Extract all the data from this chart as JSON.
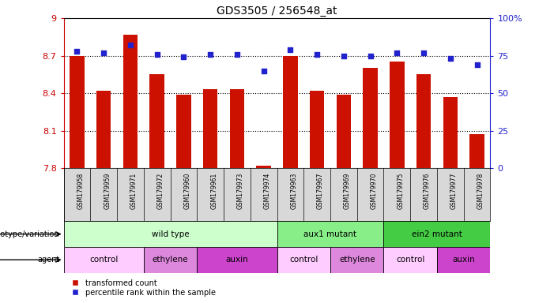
{
  "title": "GDS3505 / 256548_at",
  "samples": [
    "GSM179958",
    "GSM179959",
    "GSM179971",
    "GSM179972",
    "GSM179960",
    "GSM179961",
    "GSM179973",
    "GSM179974",
    "GSM179963",
    "GSM179967",
    "GSM179969",
    "GSM179970",
    "GSM179975",
    "GSM179976",
    "GSM179977",
    "GSM179978"
  ],
  "bar_values": [
    8.7,
    8.42,
    8.87,
    8.55,
    8.39,
    8.43,
    8.43,
    7.82,
    8.7,
    8.42,
    8.39,
    8.6,
    8.65,
    8.55,
    8.37,
    8.07
  ],
  "dot_values": [
    78,
    77,
    82,
    76,
    74,
    76,
    76,
    65,
    79,
    76,
    75,
    75,
    77,
    77,
    73,
    69
  ],
  "bar_color": "#cc1100",
  "dot_color": "#2222cc",
  "ylim_left": [
    7.8,
    9.0
  ],
  "ylim_right": [
    0,
    100
  ],
  "yticks_left": [
    7.8,
    8.1,
    8.4,
    8.7,
    9.0
  ],
  "yticks_right": [
    0,
    25,
    50,
    75,
    100
  ],
  "ytick_labels_left": [
    "7.8",
    "8.1",
    "8.4",
    "8.7",
    "9"
  ],
  "ytick_labels_right": [
    "0",
    "25",
    "50",
    "75",
    "100%"
  ],
  "hlines": [
    8.1,
    8.4,
    8.7
  ],
  "genotype_groups": [
    {
      "label": "wild type",
      "start": 0,
      "end": 8,
      "color": "#ccffcc"
    },
    {
      "label": "aux1 mutant",
      "start": 8,
      "end": 12,
      "color": "#88ee88"
    },
    {
      "label": "ein2 mutant",
      "start": 12,
      "end": 16,
      "color": "#44cc44"
    }
  ],
  "agent_groups": [
    {
      "label": "control",
      "start": 0,
      "end": 3,
      "color": "#ffccff"
    },
    {
      "label": "ethylene",
      "start": 3,
      "end": 5,
      "color": "#dd88dd"
    },
    {
      "label": "auxin",
      "start": 5,
      "end": 8,
      "color": "#cc44cc"
    },
    {
      "label": "control",
      "start": 8,
      "end": 10,
      "color": "#ffccff"
    },
    {
      "label": "ethylene",
      "start": 10,
      "end": 12,
      "color": "#dd88dd"
    },
    {
      "label": "control",
      "start": 12,
      "end": 14,
      "color": "#ffccff"
    },
    {
      "label": "auxin",
      "start": 14,
      "end": 16,
      "color": "#cc44cc"
    }
  ],
  "legend_bar_label": "transformed count",
  "legend_dot_label": "percentile rank within the sample",
  "genotype_label": "genotype/variation",
  "agent_label": "agent",
  "tick_color_left": "#cc0000",
  "tick_color_right": "#2222cc",
  "bar_width": 0.55,
  "background_color": "#ffffff",
  "xtick_bg": "#d8d8d8"
}
